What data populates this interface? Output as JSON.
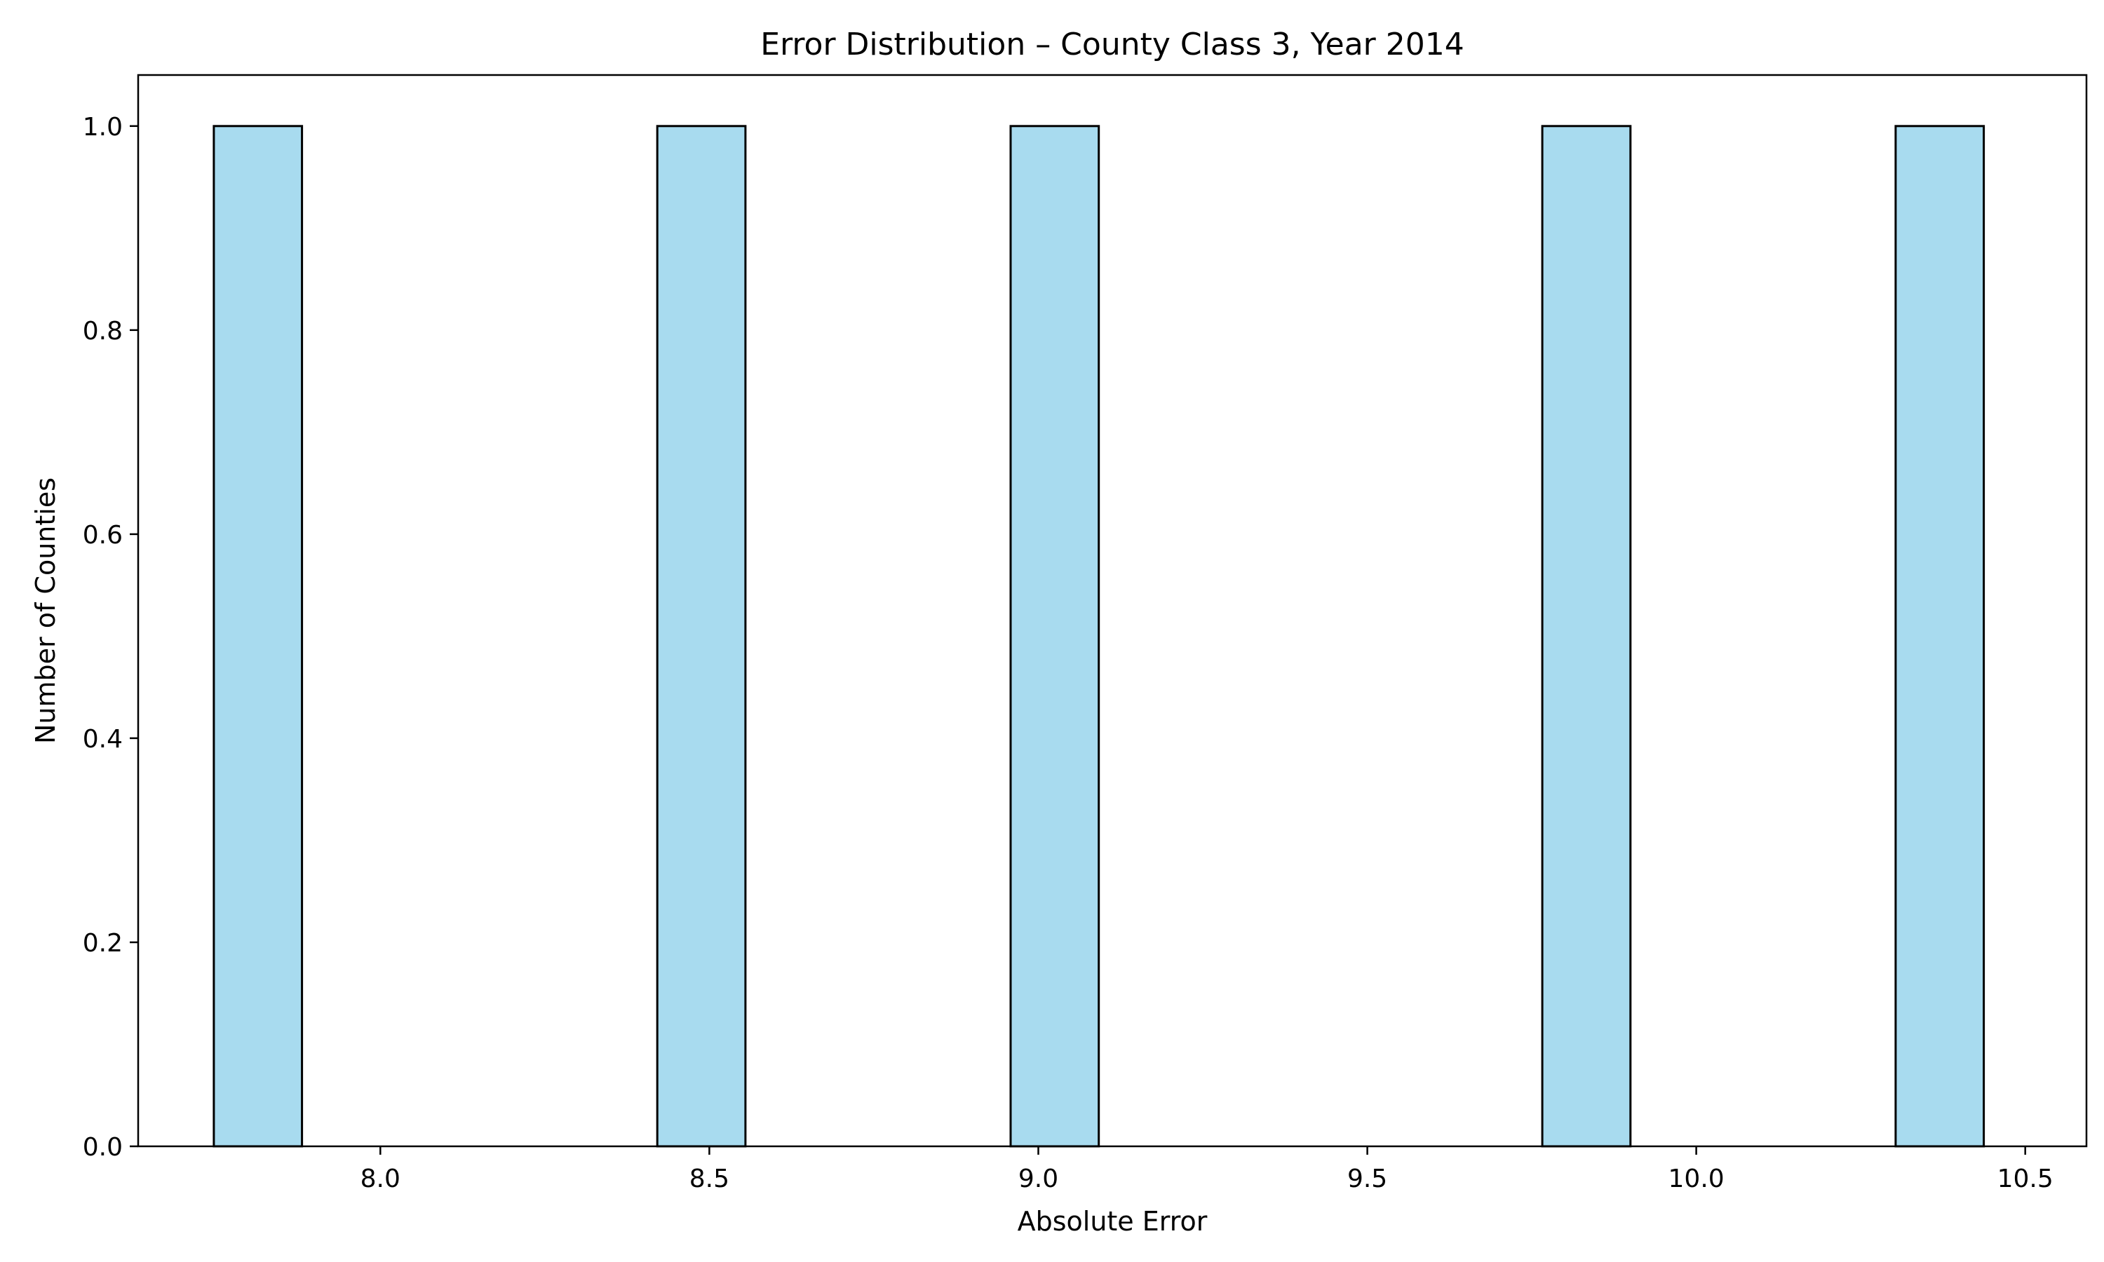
{
  "chart_data": {
    "type": "bar",
    "title": "Error Distribution – County Class 3, Year 2014",
    "xlabel": "Absolute Error",
    "ylabel": "Number of Counties",
    "bins": [
      {
        "x0": 7.747,
        "x1": 7.881,
        "value": 1
      },
      {
        "x0": 8.421,
        "x1": 8.555,
        "value": 1
      },
      {
        "x0": 8.958,
        "x1": 9.092,
        "value": 1
      },
      {
        "x0": 9.766,
        "x1": 9.9,
        "value": 1
      },
      {
        "x0": 10.303,
        "x1": 10.437,
        "value": 1
      }
    ],
    "xlim": [
      7.632,
      10.593
    ],
    "ylim": [
      0,
      1.05
    ],
    "x_ticks": [
      {
        "value": 8.0,
        "label": "8.0"
      },
      {
        "value": 8.5,
        "label": "8.5"
      },
      {
        "value": 9.0,
        "label": "9.0"
      },
      {
        "value": 9.5,
        "label": "9.5"
      },
      {
        "value": 10.0,
        "label": "10.0"
      },
      {
        "value": 10.5,
        "label": "10.5"
      }
    ],
    "y_ticks": [
      {
        "value": 0.0,
        "label": "0.0"
      },
      {
        "value": 0.2,
        "label": "0.2"
      },
      {
        "value": 0.4,
        "label": "0.4"
      },
      {
        "value": 0.6,
        "label": "0.6"
      },
      {
        "value": 0.8,
        "label": "0.8"
      },
      {
        "value": 1.0,
        "label": "1.0"
      }
    ],
    "grid": false,
    "bar_color": "#a8dbef",
    "edge_color": "#000000"
  }
}
